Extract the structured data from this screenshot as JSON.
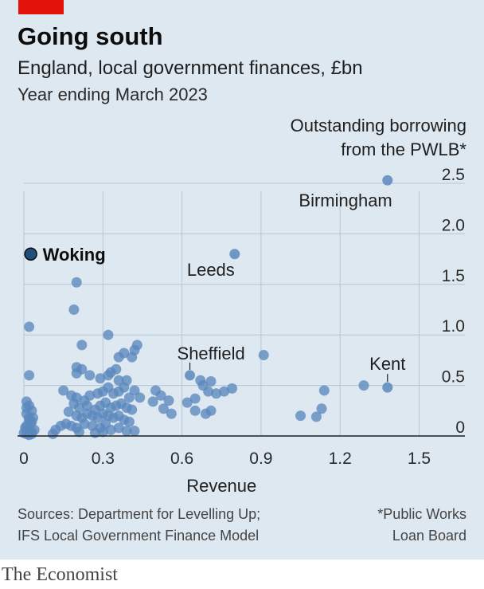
{
  "header": {
    "title": "Going south",
    "subtitle": "England, local government finances, £bn",
    "subtitle2": "Year ending March 2023"
  },
  "footer": {
    "source_line1": "Sources: Department for Levelling Up;",
    "source_line2": "IFS Local Government Finance Model",
    "note_line1": "*Public Works",
    "note_line2": "Loan Board",
    "brand": "The Economist"
  },
  "colors": {
    "background": "#dde8f1",
    "dot": "#5b88bd",
    "highlight_dot": "#1f4f7a",
    "brand_red": "#e3120b"
  },
  "chart_data": {
    "type": "scatter",
    "xlabel": "Revenue",
    "ylabel_line1": "Outstanding borrowing",
    "ylabel_line2": "from the PWLB*",
    "xlim": [
      0,
      1.65
    ],
    "ylim": [
      0,
      2.5
    ],
    "xticks": [
      0,
      0.3,
      0.6,
      0.9,
      1.2,
      1.5
    ],
    "xtick_labels": [
      "0",
      "0.3",
      "0.6",
      "0.9",
      "1.2",
      "1.5"
    ],
    "yticks": [
      0,
      0.5,
      1.0,
      1.5,
      2.0,
      2.5
    ],
    "ytick_labels": [
      "0",
      "0.5",
      "1.0",
      "1.5",
      "2.0",
      "2.5"
    ],
    "grid": true,
    "highlight": {
      "name": "Woking",
      "x": 0.02,
      "y": 1.8
    },
    "labeled_points": [
      {
        "name": "Birmingham",
        "x": 1.38,
        "y": 2.53
      },
      {
        "name": "Leeds",
        "x": 0.8,
        "y": 1.8
      },
      {
        "name": "Sheffield",
        "x": 0.63,
        "y": 0.6
      },
      {
        "name": "Kent",
        "x": 1.38,
        "y": 0.48
      }
    ],
    "points": [
      [
        0.02,
        1.08
      ],
      [
        0.19,
        1.25
      ],
      [
        0.2,
        1.52
      ],
      [
        0.22,
        0.9
      ],
      [
        0.32,
        1.0
      ],
      [
        0.02,
        0.6
      ],
      [
        0.2,
        0.68
      ],
      [
        0.22,
        0.66
      ],
      [
        0.2,
        0.62
      ],
      [
        0.25,
        0.6
      ],
      [
        0.29,
        0.57
      ],
      [
        0.32,
        0.6
      ],
      [
        0.33,
        0.63
      ],
      [
        0.35,
        0.66
      ],
      [
        0.36,
        0.55
      ],
      [
        0.36,
        0.78
      ],
      [
        0.38,
        0.82
      ],
      [
        0.41,
        0.78
      ],
      [
        0.42,
        0.85
      ],
      [
        0.43,
        0.9
      ],
      [
        0.39,
        0.55
      ],
      [
        0.42,
        0.45
      ],
      [
        0.38,
        0.48
      ],
      [
        0.15,
        0.45
      ],
      [
        0.18,
        0.4
      ],
      [
        0.2,
        0.38
      ],
      [
        0.23,
        0.35
      ],
      [
        0.25,
        0.4
      ],
      [
        0.28,
        0.42
      ],
      [
        0.3,
        0.44
      ],
      [
        0.32,
        0.48
      ],
      [
        0.34,
        0.42
      ],
      [
        0.36,
        0.44
      ],
      [
        0.4,
        0.38
      ],
      [
        0.44,
        0.38
      ],
      [
        0.19,
        0.32
      ],
      [
        0.21,
        0.28
      ],
      [
        0.24,
        0.3
      ],
      [
        0.27,
        0.26
      ],
      [
        0.29,
        0.3
      ],
      [
        0.31,
        0.33
      ],
      [
        0.33,
        0.28
      ],
      [
        0.35,
        0.3
      ],
      [
        0.37,
        0.32
      ],
      [
        0.39,
        0.28
      ],
      [
        0.41,
        0.26
      ],
      [
        0.17,
        0.24
      ],
      [
        0.2,
        0.2
      ],
      [
        0.22,
        0.18
      ],
      [
        0.24,
        0.22
      ],
      [
        0.26,
        0.2
      ],
      [
        0.28,
        0.18
      ],
      [
        0.3,
        0.22
      ],
      [
        0.32,
        0.2
      ],
      [
        0.34,
        0.18
      ],
      [
        0.36,
        0.2
      ],
      [
        0.38,
        0.16
      ],
      [
        0.4,
        0.14
      ],
      [
        0.16,
        0.12
      ],
      [
        0.18,
        0.1
      ],
      [
        0.2,
        0.08
      ],
      [
        0.23,
        0.12
      ],
      [
        0.26,
        0.1
      ],
      [
        0.29,
        0.08
      ],
      [
        0.31,
        0.12
      ],
      [
        0.33,
        0.06
      ],
      [
        0.36,
        0.08
      ],
      [
        0.39,
        0.05
      ],
      [
        0.42,
        0.05
      ],
      [
        0.12,
        0.06
      ],
      [
        0.14,
        0.1
      ],
      [
        0.11,
        0.02
      ],
      [
        0.21,
        0.04
      ],
      [
        0.27,
        0.03
      ],
      [
        0.3,
        0.04
      ],
      [
        0.01,
        0.34
      ],
      [
        0.02,
        0.3
      ],
      [
        0.03,
        0.25
      ],
      [
        0.01,
        0.22
      ],
      [
        0.02,
        0.18
      ],
      [
        0.03,
        0.14
      ],
      [
        0.01,
        0.1
      ],
      [
        0.02,
        0.07
      ],
      [
        0.03,
        0.04
      ],
      [
        0.01,
        0.02
      ],
      [
        0.02,
        0.01
      ],
      [
        0.03,
        0.02
      ],
      [
        0.015,
        0.05
      ],
      [
        0.025,
        0.12
      ],
      [
        0.005,
        0.08
      ],
      [
        0.035,
        0.18
      ],
      [
        0.0,
        0.03
      ],
      [
        0.01,
        0.28
      ],
      [
        0.04,
        0.06
      ],
      [
        0.02,
        0.16
      ],
      [
        0.5,
        0.45
      ],
      [
        0.52,
        0.4
      ],
      [
        0.55,
        0.35
      ],
      [
        0.49,
        0.34
      ],
      [
        0.53,
        0.27
      ],
      [
        0.56,
        0.22
      ],
      [
        0.62,
        0.33
      ],
      [
        0.65,
        0.37
      ],
      [
        0.67,
        0.55
      ],
      [
        0.68,
        0.5
      ],
      [
        0.7,
        0.44
      ],
      [
        0.71,
        0.54
      ],
      [
        0.73,
        0.42
      ],
      [
        0.76,
        0.44
      ],
      [
        0.79,
        0.47
      ],
      [
        0.65,
        0.25
      ],
      [
        0.69,
        0.22
      ],
      [
        0.71,
        0.25
      ],
      [
        0.91,
        0.8
      ],
      [
        1.05,
        0.2
      ],
      [
        1.11,
        0.19
      ],
      [
        1.13,
        0.27
      ],
      [
        1.14,
        0.45
      ],
      [
        1.29,
        0.5
      ]
    ]
  }
}
